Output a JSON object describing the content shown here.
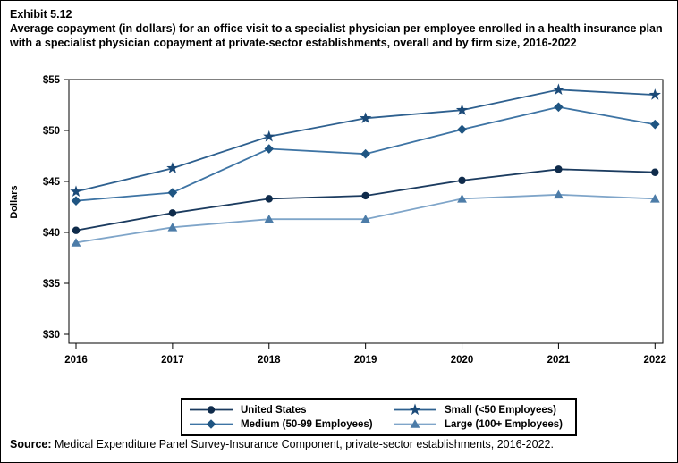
{
  "page": {
    "exhibit_label": "Exhibit 5.12",
    "title": "Average copayment (in dollars) for an office visit to a specialist physician per employee enrolled in a health insurance plan with a specialist physician copayment at private-sector establishments, overall and by firm size, 2016-2022",
    "source_label": "Source:",
    "source_text": " Medical Expenditure Panel Survey-Insurance Component, private-sector establishments, 2016-2022."
  },
  "chart_data": {
    "type": "line",
    "title": "Average copayment (in dollars) for an office visit to a specialist physician per employee enrolled in a health insurance plan with a specialist physician copayment, 2016-2022",
    "xlabel": "",
    "ylabel": "Dollars",
    "x": [
      2016,
      2017,
      2018,
      2019,
      2020,
      2021,
      2022
    ],
    "ylim": [
      30,
      55
    ],
    "yticks": [
      {
        "value": 30,
        "label": "$30"
      },
      {
        "value": 35,
        "label": "$35"
      },
      {
        "value": 40,
        "label": "$40"
      },
      {
        "value": 45,
        "label": "$45"
      },
      {
        "value": 50,
        "label": "$50"
      },
      {
        "value": 55,
        "label": "$55"
      }
    ],
    "grid": false,
    "legend_position": "bottom",
    "series": [
      {
        "name": "United States",
        "marker": "circle",
        "color": "#0F2B4B",
        "line_color": "#1B3B5F",
        "values": [
          40.2,
          41.9,
          43.3,
          43.6,
          45.1,
          46.2,
          45.9
        ]
      },
      {
        "name": "Small (<50 Employees)",
        "marker": "star",
        "color": "#1B4A78",
        "line_color": "#2E608F",
        "values": [
          44.0,
          46.3,
          49.4,
          51.2,
          52.0,
          54.0,
          53.5
        ]
      },
      {
        "name": "Medium (50-99 Employees)",
        "marker": "diamond",
        "color": "#1F5582",
        "line_color": "#3E74A4",
        "values": [
          43.1,
          43.9,
          48.2,
          47.7,
          50.1,
          52.3,
          50.6
        ]
      },
      {
        "name": "Large (100+ Employees)",
        "marker": "triangle",
        "color": "#4C7CA8",
        "line_color": "#7FA5C9",
        "values": [
          39.0,
          40.5,
          41.3,
          41.3,
          43.3,
          43.7,
          43.3
        ]
      }
    ]
  }
}
